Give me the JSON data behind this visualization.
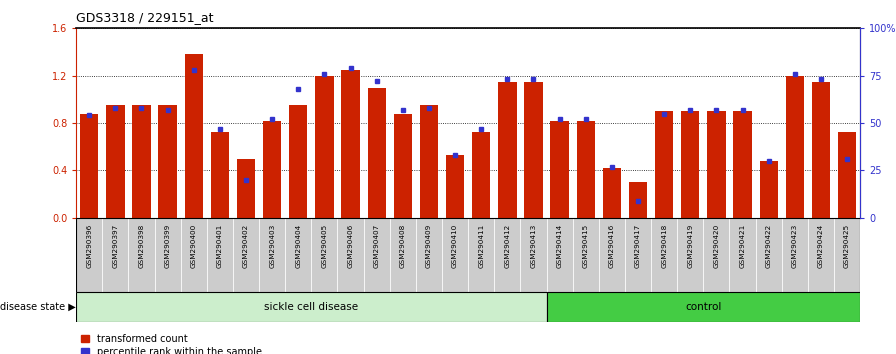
{
  "title": "GDS3318 / 229151_at",
  "samples": [
    "GSM290396",
    "GSM290397",
    "GSM290398",
    "GSM290399",
    "GSM290400",
    "GSM290401",
    "GSM290402",
    "GSM290403",
    "GSM290404",
    "GSM290405",
    "GSM290406",
    "GSM290407",
    "GSM290408",
    "GSM290409",
    "GSM290410",
    "GSM290411",
    "GSM290412",
    "GSM290413",
    "GSM290414",
    "GSM290415",
    "GSM290416",
    "GSM290417",
    "GSM290418",
    "GSM290419",
    "GSM290420",
    "GSM290421",
    "GSM290422",
    "GSM290423",
    "GSM290424",
    "GSM290425"
  ],
  "red_values": [
    0.88,
    0.95,
    0.95,
    0.95,
    1.38,
    0.72,
    0.5,
    0.82,
    0.95,
    1.2,
    1.25,
    1.1,
    0.88,
    0.95,
    0.53,
    0.72,
    1.15,
    1.15,
    0.82,
    0.82,
    0.42,
    0.3,
    0.9,
    0.9,
    0.9,
    0.9,
    0.48,
    1.2,
    1.15,
    0.72
  ],
  "blue_values": [
    54,
    58,
    58,
    57,
    78,
    47,
    20,
    52,
    68,
    76,
    79,
    72,
    57,
    58,
    33,
    47,
    73,
    73,
    52,
    52,
    27,
    9,
    55,
    57,
    57,
    57,
    30,
    76,
    73,
    31
  ],
  "sickle_count": 18,
  "ylim_left": [
    0,
    1.6
  ],
  "ylim_right": [
    0,
    100
  ],
  "yticks_left": [
    0,
    0.4,
    0.8,
    1.2,
    1.6
  ],
  "yticks_right": [
    0,
    25,
    50,
    75,
    100
  ],
  "ytick_labels_right": [
    "0",
    "25",
    "50",
    "75",
    "100%"
  ],
  "bar_color": "#cc2200",
  "blue_color": "#3333cc",
  "sickle_bg": "#cceecc",
  "control_bg": "#44cc44",
  "tick_bg": "#cccccc",
  "title_fontsize": 9,
  "tick_fontsize": 5.5
}
